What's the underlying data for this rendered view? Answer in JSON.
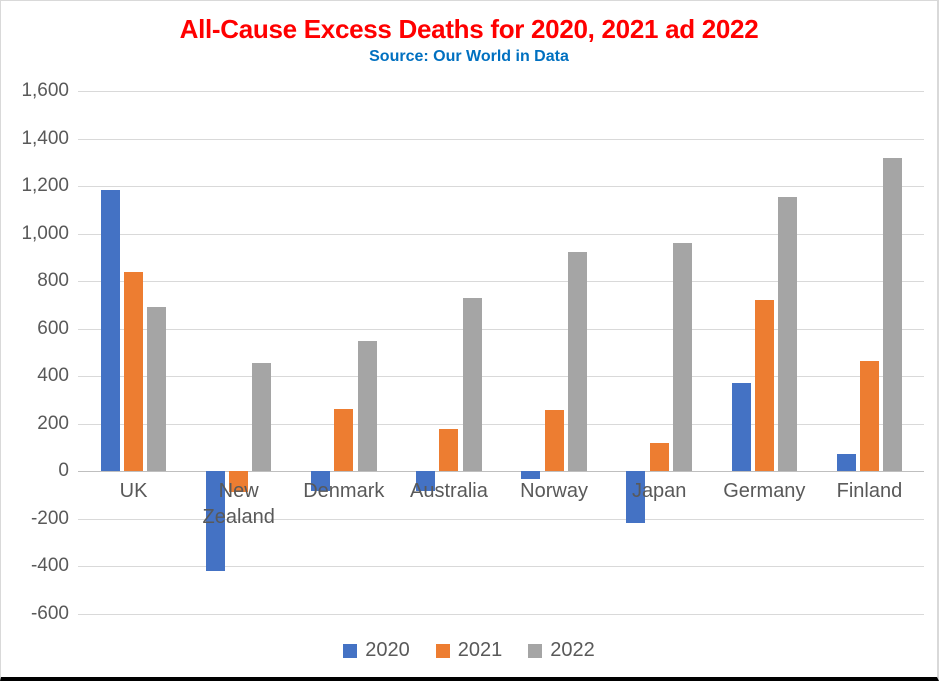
{
  "header": {
    "title": "All-Cause Excess Deaths for 2020, 2021 ad 2022",
    "title_color": "#FF0000",
    "subtitle": "Source: Our World in Data",
    "subtitle_color": "#0070C0"
  },
  "chart_data": {
    "type": "bar",
    "title": "All-Cause Excess Deaths for 2020, 2021 ad 2022",
    "subtitle": "Source: Our World in Data",
    "categories": [
      "UK",
      "New Zealand",
      "Denmark",
      "Australia",
      "Norway",
      "Japan",
      "Germany",
      "Finland"
    ],
    "series": [
      {
        "name": "2020",
        "color": "#4472C4",
        "values": [
          1185,
          -420,
          -85,
          -85,
          -35,
          -220,
          372,
          72
        ]
      },
      {
        "name": "2021",
        "color": "#ED7D31",
        "values": [
          840,
          -90,
          262,
          175,
          258,
          118,
          722,
          462
        ]
      },
      {
        "name": "2022",
        "color": "#A5A5A5",
        "values": [
          690,
          455,
          548,
          728,
          922,
          960,
          1152,
          1320
        ]
      }
    ],
    "ylim": [
      -600,
      1600
    ],
    "ytick_step": 200,
    "ytick_labels": [
      "1,600",
      "1,400",
      "1,200",
      "1,000",
      "800",
      "600",
      "400",
      "200",
      "0",
      "-200",
      "-400",
      "-600"
    ],
    "grid": true,
    "legend_position": "bottom",
    "axis_label_color": "#595959",
    "gridline_color": "#D9D9D9",
    "zero_axis_color": "#BFBFBF"
  }
}
